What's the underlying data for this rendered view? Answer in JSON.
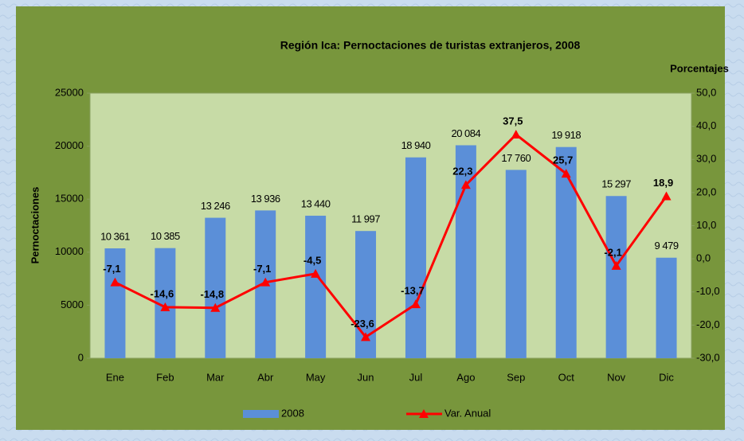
{
  "chart_data": {
    "type": "bar",
    "title": "Región Ica: Pernoctaciones  de turistas  extranjeros,  2008",
    "y_label": "Pernoctaciones",
    "y2_label": "Porcentajes",
    "categories": [
      "Ene",
      "Feb",
      "Mar",
      "Abr",
      "May",
      "Jun",
      "Jul",
      "Ago",
      "Sep",
      "Oct",
      "Nov",
      "Dic"
    ],
    "series": [
      {
        "name": "2008",
        "type": "bar",
        "axis": "y",
        "color": "#5b8fd8",
        "values": [
          10361,
          10385,
          13246,
          13936,
          13440,
          11997,
          18940,
          20084,
          17760,
          19918,
          15297,
          9479
        ],
        "value_labels": [
          "10 361",
          "10 385",
          "13 246",
          "13 936",
          "13 440",
          "11 997",
          "18 940",
          "20 084",
          "17 760",
          "19 918",
          "15 297",
          "9 479"
        ]
      },
      {
        "name": "Var. Anual",
        "type": "line",
        "axis": "y2",
        "color": "#ff0000",
        "values": [
          -7.1,
          -14.6,
          -14.8,
          -7.1,
          -4.5,
          -23.6,
          -13.7,
          22.3,
          37.5,
          25.7,
          -2.1,
          18.9
        ],
        "value_labels": [
          "-7,1",
          "-14,6",
          "-14,8",
          "-7,1",
          "-4,5",
          "-23,6",
          "-13,7",
          "22,3",
          "37,5",
          "25,7",
          "-2,1",
          "18,9"
        ]
      }
    ],
    "ylim": [
      0,
      25000
    ],
    "yticks": [
      0,
      5000,
      10000,
      15000,
      20000,
      25000
    ],
    "y2lim": [
      -30,
      50
    ],
    "y2ticks": [
      {
        "value": -30,
        "label": "-30,0"
      },
      {
        "value": -20,
        "label": "-20,0"
      },
      {
        "value": -10,
        "label": "-10,0"
      },
      {
        "value": 0,
        "label": "0,0"
      },
      {
        "value": 10,
        "label": "10,0"
      },
      {
        "value": 20,
        "label": "20,0"
      },
      {
        "value": 30,
        "label": "30,0"
      },
      {
        "value": 40,
        "label": "40,0"
      },
      {
        "value": 50,
        "label": "50,0"
      }
    ],
    "grid": false,
    "legend": "bottom"
  }
}
